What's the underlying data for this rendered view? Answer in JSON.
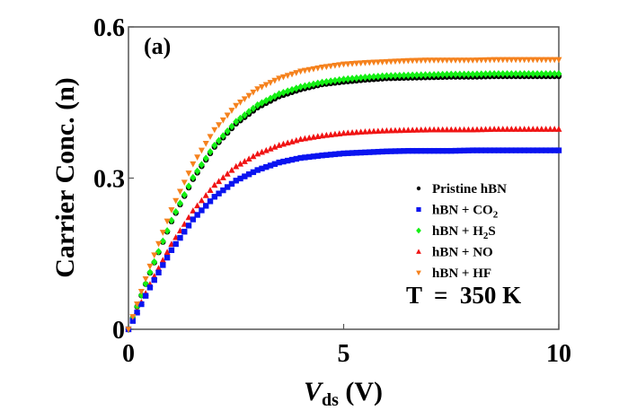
{
  "chart_data": {
    "type": "scatter",
    "panel_label": "(a)",
    "xlabel": {
      "main": "V",
      "sub": "ds",
      "unit": " (V)"
    },
    "ylabel": "Carrier Conc. (n)",
    "xlim": [
      0,
      10
    ],
    "ylim": [
      0,
      0.6
    ],
    "xticks": [
      {
        "value": 0,
        "label": "0"
      },
      {
        "value": 5,
        "label": "5"
      },
      {
        "value": 10,
        "label": "10"
      }
    ],
    "yticks": [
      {
        "value": 0,
        "label": "0"
      },
      {
        "value": 0.3,
        "label": "0.3"
      },
      {
        "value": 0.6,
        "label": "0.6"
      }
    ],
    "grid": false,
    "legend_position": "right",
    "annotation": "T  =  350 K",
    "x": [
      0,
      0.5,
      1,
      1.5,
      2,
      2.5,
      3,
      3.5,
      4,
      4.5,
      5,
      5.5,
      6,
      6.5,
      7,
      7.5,
      8,
      8.5,
      9,
      9.5,
      10
    ],
    "series": [
      {
        "name": "Pristine hBN",
        "name_parts": [
          [
            "Pristine hBN",
            false
          ]
        ],
        "color": "#000000",
        "marker": "circle",
        "values": [
          0,
          0.112,
          0.214,
          0.298,
          0.362,
          0.408,
          0.44,
          0.462,
          0.476,
          0.486,
          0.491,
          0.495,
          0.498,
          0.499,
          0.5,
          0.501,
          0.501,
          0.502,
          0.502,
          0.502,
          0.502
        ]
      },
      {
        "name": "hBN + CO2",
        "name_parts": [
          [
            "hBN + CO",
            false
          ],
          [
            "2",
            true
          ]
        ],
        "color": "#0a14f0",
        "marker": "square",
        "values": [
          0,
          0.083,
          0.157,
          0.218,
          0.263,
          0.295,
          0.316,
          0.331,
          0.34,
          0.345,
          0.349,
          0.351,
          0.353,
          0.354,
          0.354,
          0.354,
          0.355,
          0.355,
          0.355,
          0.355,
          0.355
        ]
      },
      {
        "name": "hBN + H2S",
        "name_parts": [
          [
            "hBN + H",
            false
          ],
          [
            "2",
            true
          ],
          [
            "S",
            false
          ]
        ],
        "color": "#14f014",
        "marker": "diamond",
        "values": [
          0,
          0.113,
          0.216,
          0.301,
          0.365,
          0.412,
          0.445,
          0.467,
          0.481,
          0.49,
          0.496,
          0.5,
          0.503,
          0.504,
          0.505,
          0.506,
          0.506,
          0.507,
          0.507,
          0.507,
          0.507
        ]
      },
      {
        "name": "hBN + NO",
        "name_parts": [
          [
            "hBN + NO",
            false
          ]
        ],
        "color": "#f01414",
        "marker": "triangle-up",
        "values": [
          0,
          0.089,
          0.169,
          0.235,
          0.286,
          0.323,
          0.348,
          0.365,
          0.377,
          0.384,
          0.389,
          0.392,
          0.394,
          0.395,
          0.396,
          0.396,
          0.396,
          0.397,
          0.397,
          0.397,
          0.397
        ]
      },
      {
        "name": "hBN + HF",
        "name_parts": [
          [
            "hBN + HF",
            false
          ]
        ],
        "color": "#f5821e",
        "marker": "triangle-down",
        "values": [
          0,
          0.125,
          0.237,
          0.328,
          0.396,
          0.444,
          0.477,
          0.498,
          0.512,
          0.52,
          0.526,
          0.529,
          0.531,
          0.533,
          0.534,
          0.534,
          0.534,
          0.535,
          0.535,
          0.535,
          0.535
        ]
      }
    ]
  }
}
